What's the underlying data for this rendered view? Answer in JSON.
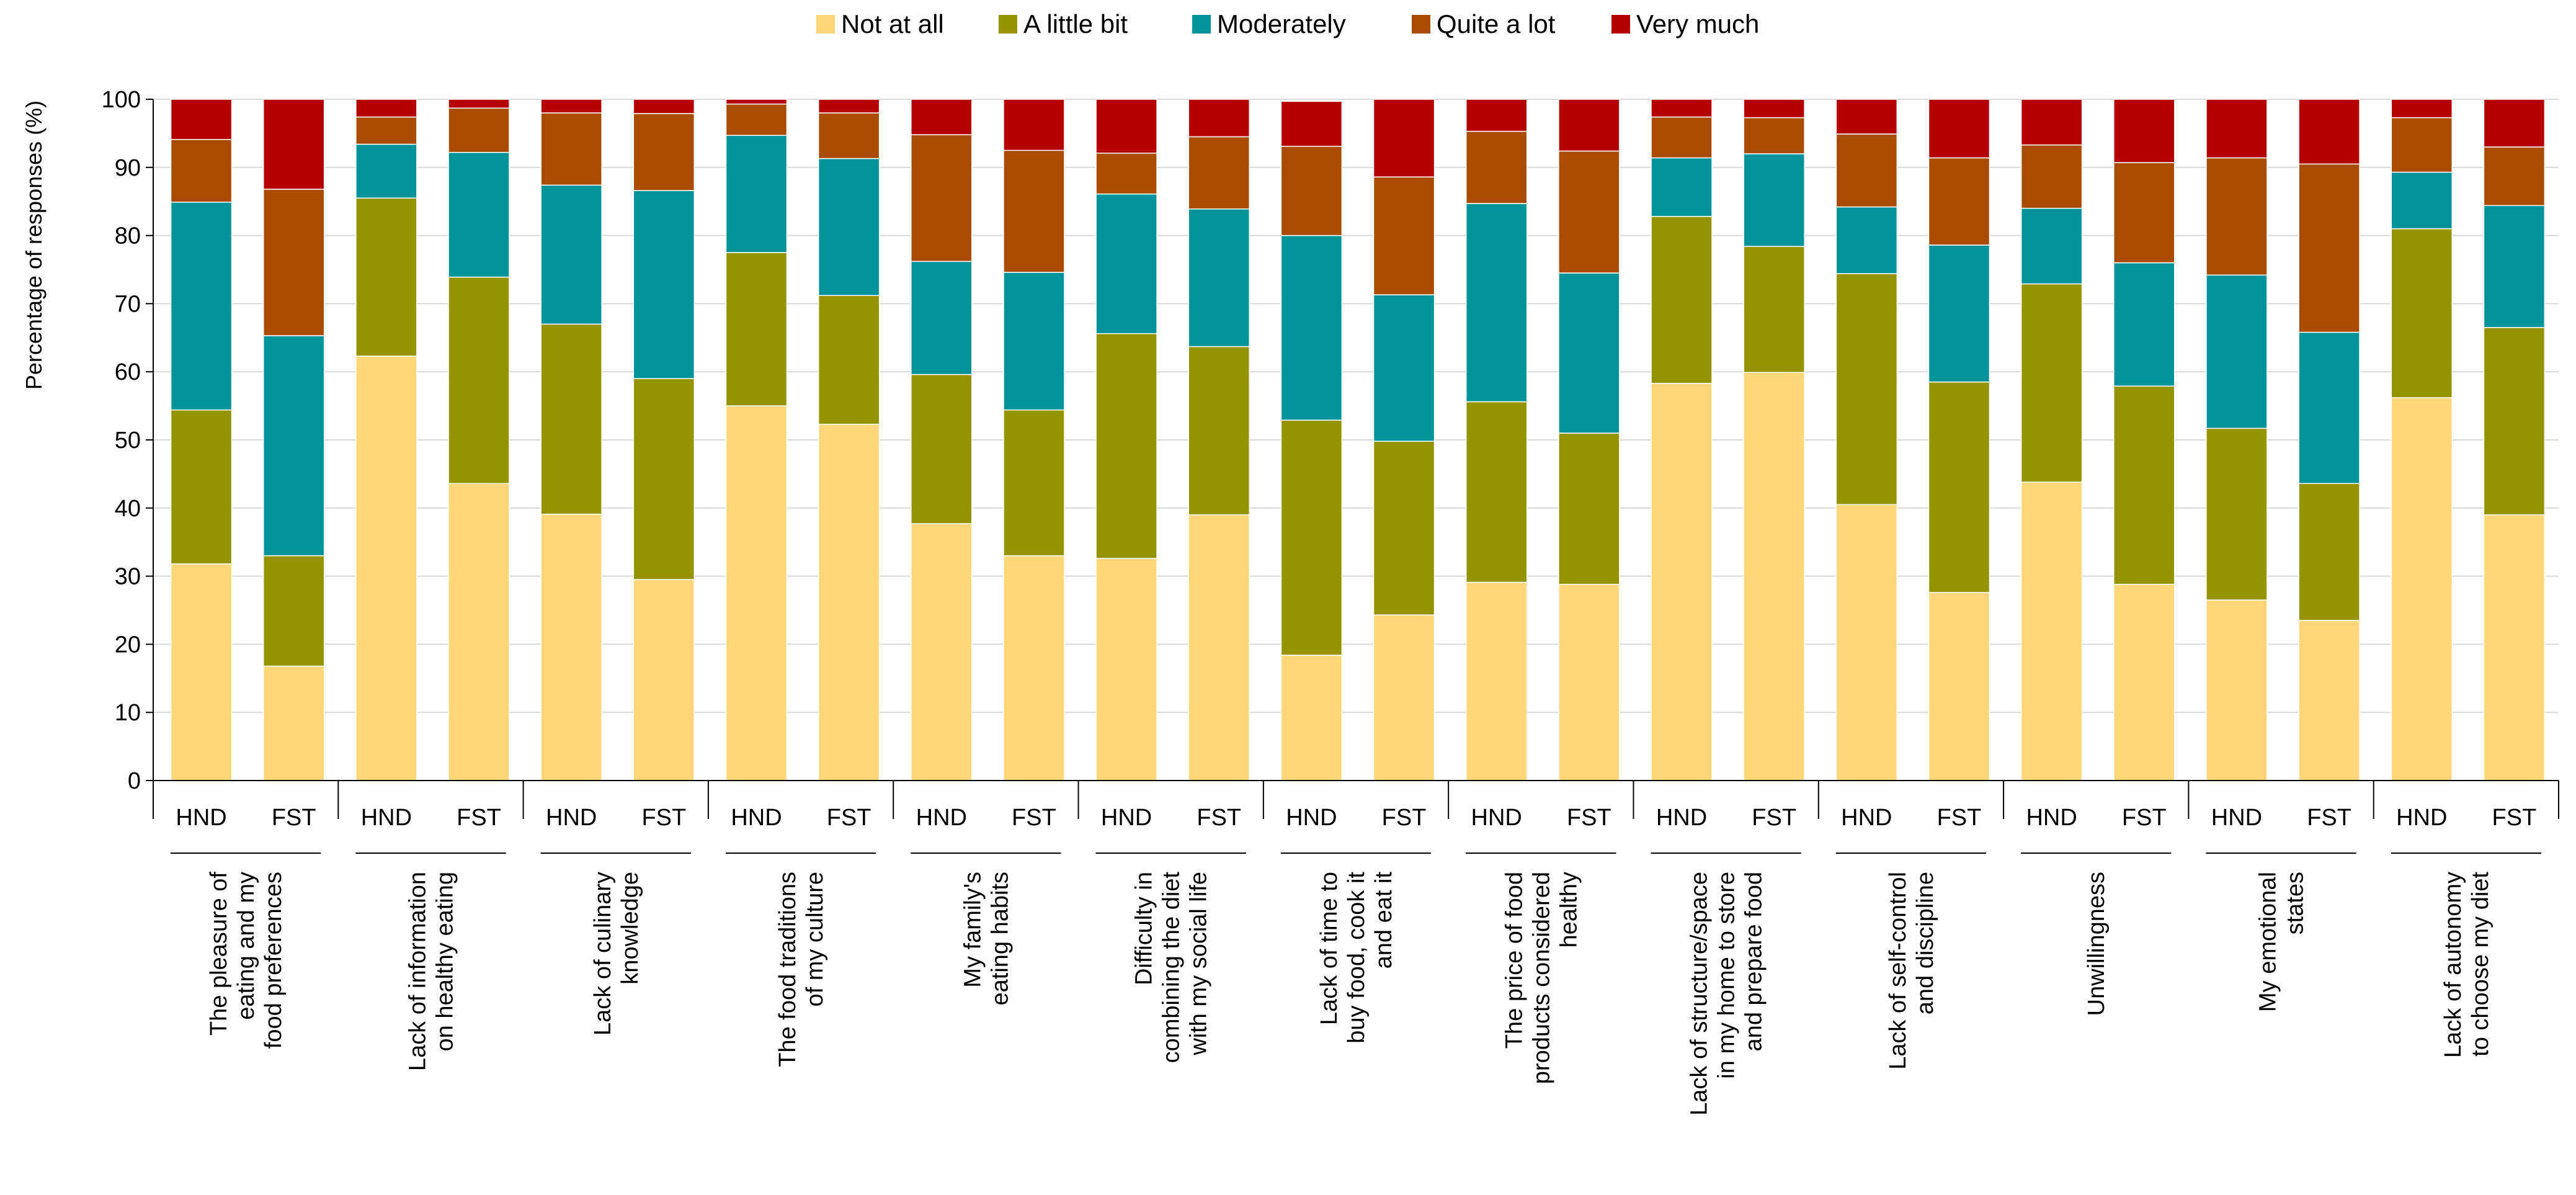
{
  "chart_data": {
    "type": "bar",
    "stacked": true,
    "ylabel": "Percentage of responses (%)",
    "ylim": [
      0,
      100
    ],
    "yticks": [
      0,
      10,
      20,
      30,
      40,
      50,
      60,
      70,
      80,
      90,
      100
    ],
    "grid": true,
    "legend_position": "top-center",
    "series": [
      {
        "name": "Not at all",
        "color": "#FFD778"
      },
      {
        "name": "A little bit",
        "color": "#959300"
      },
      {
        "name": "Moderately",
        "color": "#00939A"
      },
      {
        "name": "Quite a lot",
        "color": "#A94B00"
      },
      {
        "name": "Very much",
        "color": "#B60000"
      }
    ],
    "groups": [
      {
        "label_lines": [
          "The pleasure of",
          "eating and my",
          "food preferences"
        ],
        "bars": [
          {
            "name": "HND",
            "values": [
              31.8,
              22.6,
              30.5,
              9.2,
              5.9
            ]
          },
          {
            "name": "FST",
            "values": [
              16.8,
              16.2,
              32.3,
              21.5,
              13.2
            ]
          }
        ]
      },
      {
        "label_lines": [
          "Lack of information",
          "on healthy eating"
        ],
        "bars": [
          {
            "name": "HND",
            "values": [
              62.3,
              23.2,
              7.9,
              4.0,
              2.6
            ]
          },
          {
            "name": "FST",
            "values": [
              43.6,
              30.3,
              18.3,
              6.5,
              1.3
            ]
          }
        ]
      },
      {
        "label_lines": [
          "Lack of culinary",
          "knowledge"
        ],
        "bars": [
          {
            "name": "HND",
            "values": [
              39.1,
              27.9,
              20.4,
              10.6,
              2.0
            ]
          },
          {
            "name": "FST",
            "values": [
              29.5,
              29.5,
              27.6,
              11.3,
              2.1
            ]
          }
        ]
      },
      {
        "label_lines": [
          "The food traditions",
          "of my culture"
        ],
        "bars": [
          {
            "name": "HND",
            "values": [
              55.0,
              22.5,
              17.2,
              4.6,
              0.7
            ]
          },
          {
            "name": "FST",
            "values": [
              52.3,
              18.9,
              20.1,
              6.7,
              2.0
            ]
          }
        ]
      },
      {
        "label_lines": [
          "My family's",
          "eating habits"
        ],
        "bars": [
          {
            "name": "HND",
            "values": [
              37.7,
              21.9,
              16.6,
              18.6,
              5.2
            ]
          },
          {
            "name": "FST",
            "values": [
              33.0,
              21.4,
              20.2,
              17.9,
              7.5
            ]
          }
        ]
      },
      {
        "label_lines": [
          "Difficulty in",
          "combining the diet",
          "with my social life"
        ],
        "bars": [
          {
            "name": "HND",
            "values": [
              32.6,
              33.0,
              20.5,
              6.0,
              7.9
            ]
          },
          {
            "name": "FST",
            "values": [
              39.0,
              24.7,
              20.2,
              10.6,
              5.5
            ]
          }
        ]
      },
      {
        "label_lines": [
          "Lack of time to",
          "buy food, cook it",
          "and eat it"
        ],
        "bars": [
          {
            "name": "HND",
            "values": [
              18.4,
              34.5,
              27.1,
              13.1,
              6.6
            ]
          },
          {
            "name": "FST",
            "values": [
              24.3,
              25.5,
              21.5,
              17.3,
              11.4
            ]
          }
        ]
      },
      {
        "label_lines": [
          "The price of food",
          "products considered",
          "healthy"
        ],
        "bars": [
          {
            "name": "HND",
            "values": [
              29.1,
              26.5,
              29.1,
              10.6,
              4.7
            ]
          },
          {
            "name": "FST",
            "values": [
              28.8,
              22.2,
              23.5,
              17.9,
              7.6
            ]
          }
        ]
      },
      {
        "label_lines": [
          "Lack of structure/space",
          "in my home to store",
          "and prepare food"
        ],
        "bars": [
          {
            "name": "HND",
            "values": [
              58.3,
              24.5,
              8.6,
              6.0,
              2.6
            ]
          },
          {
            "name": "FST",
            "values": [
              59.9,
              18.5,
              13.6,
              5.3,
              2.7
            ]
          }
        ]
      },
      {
        "label_lines": [
          "Lack of self-control",
          "and discipline"
        ],
        "bars": [
          {
            "name": "HND",
            "values": [
              40.5,
              33.9,
              9.8,
              10.7,
              5.1
            ]
          },
          {
            "name": "FST",
            "values": [
              27.6,
              30.9,
              20.1,
              12.8,
              8.6
            ]
          }
        ]
      },
      {
        "label_lines": [
          "Unwillingness"
        ],
        "bars": [
          {
            "name": "HND",
            "values": [
              43.8,
              29.1,
              11.1,
              9.3,
              6.7
            ]
          },
          {
            "name": "FST",
            "values": [
              28.8,
              29.1,
              18.1,
              14.7,
              9.3
            ]
          }
        ]
      },
      {
        "label_lines": [
          "My emotional",
          "states"
        ],
        "bars": [
          {
            "name": "HND",
            "values": [
              26.5,
              25.2,
              22.5,
              17.2,
              8.6
            ]
          },
          {
            "name": "FST",
            "values": [
              23.5,
              20.1,
              22.2,
              24.7,
              9.5
            ]
          }
        ]
      },
      {
        "label_lines": [
          "Lack of autonomy",
          "to choose my diet"
        ],
        "bars": [
          {
            "name": "HND",
            "values": [
              56.2,
              24.8,
              8.3,
              8.0,
              2.7
            ]
          },
          {
            "name": "FST",
            "values": [
              39.0,
              27.5,
              17.9,
              8.6,
              7.0
            ]
          }
        ]
      }
    ]
  }
}
